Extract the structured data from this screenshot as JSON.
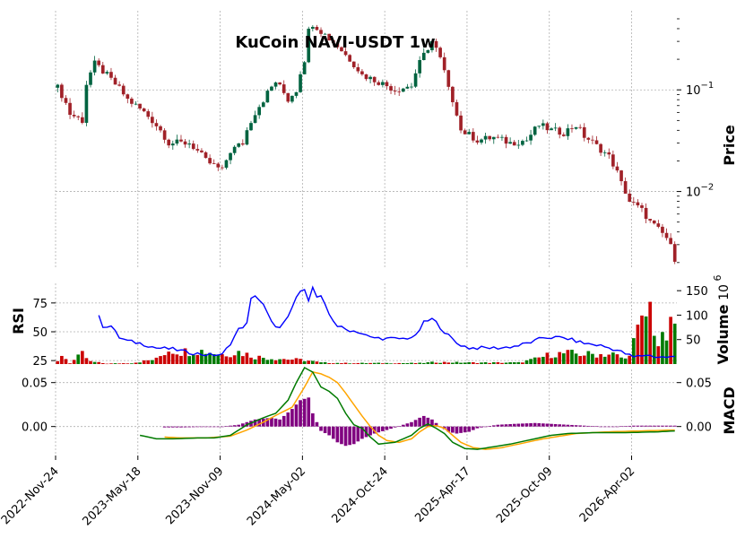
{
  "chart_data": {
    "type": "financial",
    "title": "KuCoin NAVI-USDT 1w",
    "x_tick_labels": [
      "2022-Nov-24",
      "2023-May-18",
      "2023-Nov-09",
      "2024-May-02",
      "2024-Oct-24",
      "2025-Apr-17",
      "2025-Oct-09",
      "2026-Apr-02"
    ],
    "panels": {
      "price": {
        "ylabel": "Price",
        "scale": "log",
        "ylim": [
          0.0018,
          0.6
        ],
        "tick_labels": [
          {
            "value": 0.1,
            "base": "10",
            "exp": "−1"
          },
          {
            "value": 0.01,
            "base": "10",
            "exp": "−2"
          }
        ],
        "up_color": "#006340",
        "down_color": "#a02128"
      },
      "rsi": {
        "ylabel": "RSI",
        "ylim": [
          22,
          92
        ],
        "tick_labels": [
          "25",
          "50",
          "75"
        ],
        "tick_values": [
          25,
          50,
          75
        ],
        "line_color": "#0000ff"
      },
      "volume": {
        "ylabel": "Volume",
        "exponent_label": "10",
        "exponent_power": "6",
        "ylim": [
          0,
          165
        ],
        "tick_labels": [
          "50",
          "100",
          "150"
        ],
        "tick_values": [
          50,
          100,
          150
        ],
        "up_color": "#007a00",
        "down_color": "#cc0000"
      },
      "macd": {
        "ylabel": "MACD",
        "ylim": [
          -0.033,
          0.065
        ],
        "left_tick_labels": [
          "0.00",
          "0.05"
        ],
        "right_tick_labels": [
          "0.00",
          "0.05"
        ],
        "tick_values": [
          0,
          0.05
        ],
        "macd_color": "#007a00",
        "signal_color": "#ffa500",
        "hist_color": "#800080"
      }
    },
    "anchors": [
      {
        "i": 0,
        "p": 0.105
      },
      {
        "i": 3,
        "p": 0.058
      },
      {
        "i": 6,
        "p": 0.05
      },
      {
        "i": 7,
        "p": 0.115
      },
      {
        "i": 9,
        "p": 0.18
      },
      {
        "i": 13,
        "p": 0.125
      },
      {
        "i": 17,
        "p": 0.08
      },
      {
        "i": 22,
        "p": 0.055
      },
      {
        "i": 27,
        "p": 0.03
      },
      {
        "i": 32,
        "p": 0.03
      },
      {
        "i": 36,
        "p": 0.02
      },
      {
        "i": 40,
        "p": 0.016
      },
      {
        "i": 42,
        "p": 0.025
      },
      {
        "i": 45,
        "p": 0.03
      },
      {
        "i": 50,
        "p": 0.08
      },
      {
        "i": 53,
        "p": 0.12
      },
      {
        "i": 56,
        "p": 0.08
      },
      {
        "i": 58,
        "p": 0.1
      },
      {
        "i": 60,
        "p": 0.2
      },
      {
        "i": 61,
        "p": 0.38
      },
      {
        "i": 62,
        "p": 0.45
      },
      {
        "i": 64,
        "p": 0.38
      },
      {
        "i": 66,
        "p": 0.32
      },
      {
        "i": 70,
        "p": 0.22
      },
      {
        "i": 74,
        "p": 0.14
      },
      {
        "i": 78,
        "p": 0.12
      },
      {
        "i": 82,
        "p": 0.1
      },
      {
        "i": 86,
        "p": 0.11
      },
      {
        "i": 89,
        "p": 0.22
      },
      {
        "i": 91,
        "p": 0.3
      },
      {
        "i": 93,
        "p": 0.2
      },
      {
        "i": 95,
        "p": 0.1
      },
      {
        "i": 98,
        "p": 0.04
      },
      {
        "i": 102,
        "p": 0.032
      },
      {
        "i": 106,
        "p": 0.034
      },
      {
        "i": 110,
        "p": 0.03
      },
      {
        "i": 114,
        "p": 0.032
      },
      {
        "i": 117,
        "p": 0.045
      },
      {
        "i": 120,
        "p": 0.04
      },
      {
        "i": 123,
        "p": 0.038
      },
      {
        "i": 126,
        "p": 0.045
      },
      {
        "i": 128,
        "p": 0.035
      },
      {
        "i": 131,
        "p": 0.028
      },
      {
        "i": 134,
        "p": 0.022
      },
      {
        "i": 137,
        "p": 0.012
      },
      {
        "i": 139,
        "p": 0.008
      },
      {
        "i": 142,
        "p": 0.0065
      },
      {
        "i": 144,
        "p": 0.005
      },
      {
        "i": 146,
        "p": 0.0042
      },
      {
        "i": 148,
        "p": 0.0035
      },
      {
        "i": 150,
        "p": 0.0022
      }
    ],
    "volume_anchors": [
      {
        "i": 0,
        "v": 5
      },
      {
        "i": 1,
        "v": 20
      },
      {
        "i": 3,
        "v": 2
      },
      {
        "i": 6,
        "v": 20
      },
      {
        "i": 8,
        "v": 5
      },
      {
        "i": 12,
        "v": 1
      },
      {
        "i": 18,
        "v": 2
      },
      {
        "i": 24,
        "v": 10
      },
      {
        "i": 27,
        "v": 30
      },
      {
        "i": 30,
        "v": 25
      },
      {
        "i": 34,
        "v": 28
      },
      {
        "i": 37,
        "v": 25
      },
      {
        "i": 40,
        "v": 20
      },
      {
        "i": 44,
        "v": 25
      },
      {
        "i": 48,
        "v": 15
      },
      {
        "i": 52,
        "v": 12
      },
      {
        "i": 56,
        "v": 10
      },
      {
        "i": 60,
        "v": 8
      },
      {
        "i": 64,
        "v": 3
      },
      {
        "i": 70,
        "v": 2
      },
      {
        "i": 80,
        "v": 2
      },
      {
        "i": 88,
        "v": 2
      },
      {
        "i": 92,
        "v": 4
      },
      {
        "i": 100,
        "v": 3
      },
      {
        "i": 106,
        "v": 3
      },
      {
        "i": 112,
        "v": 3
      },
      {
        "i": 116,
        "v": 10
      },
      {
        "i": 120,
        "v": 20
      },
      {
        "i": 124,
        "v": 22
      },
      {
        "i": 128,
        "v": 20
      },
      {
        "i": 132,
        "v": 20
      },
      {
        "i": 135,
        "v": 20
      },
      {
        "i": 138,
        "v": 10
      },
      {
        "i": 140,
        "v": 45
      },
      {
        "i": 142,
        "v": 80
      },
      {
        "i": 144,
        "v": 115
      },
      {
        "i": 146,
        "v": 40
      },
      {
        "i": 148,
        "v": 55
      },
      {
        "i": 150,
        "v": 85
      }
    ],
    "rsi_anchors": [
      {
        "i": 10,
        "v": 63
      },
      {
        "i": 11,
        "v": 55
      },
      {
        "i": 13,
        "v": 55
      },
      {
        "i": 15,
        "v": 45
      },
      {
        "i": 17,
        "v": 42
      },
      {
        "i": 20,
        "v": 40
      },
      {
        "i": 24,
        "v": 36
      },
      {
        "i": 28,
        "v": 35
      },
      {
        "i": 32,
        "v": 32
      },
      {
        "i": 36,
        "v": 30
      },
      {
        "i": 40,
        "v": 30
      },
      {
        "i": 42,
        "v": 40
      },
      {
        "i": 44,
        "v": 52
      },
      {
        "i": 46,
        "v": 57
      },
      {
        "i": 47,
        "v": 78
      },
      {
        "i": 48,
        "v": 82
      },
      {
        "i": 50,
        "v": 73
      },
      {
        "i": 52,
        "v": 58
      },
      {
        "i": 54,
        "v": 53
      },
      {
        "i": 56,
        "v": 62
      },
      {
        "i": 58,
        "v": 80
      },
      {
        "i": 60,
        "v": 88
      },
      {
        "i": 61,
        "v": 78
      },
      {
        "i": 62,
        "v": 88
      },
      {
        "i": 63,
        "v": 80
      },
      {
        "i": 64,
        "v": 80
      },
      {
        "i": 66,
        "v": 65
      },
      {
        "i": 68,
        "v": 55
      },
      {
        "i": 70,
        "v": 52
      },
      {
        "i": 73,
        "v": 50
      },
      {
        "i": 76,
        "v": 45
      },
      {
        "i": 80,
        "v": 44
      },
      {
        "i": 84,
        "v": 44
      },
      {
        "i": 87,
        "v": 46
      },
      {
        "i": 89,
        "v": 58
      },
      {
        "i": 91,
        "v": 61
      },
      {
        "i": 92,
        "v": 58
      },
      {
        "i": 94,
        "v": 50
      },
      {
        "i": 97,
        "v": 40
      },
      {
        "i": 100,
        "v": 36
      },
      {
        "i": 104,
        "v": 36
      },
      {
        "i": 108,
        "v": 36
      },
      {
        "i": 112,
        "v": 38
      },
      {
        "i": 116,
        "v": 42
      },
      {
        "i": 118,
        "v": 45
      },
      {
        "i": 122,
        "v": 45
      },
      {
        "i": 124,
        "v": 44
      },
      {
        "i": 128,
        "v": 40
      },
      {
        "i": 132,
        "v": 38
      },
      {
        "i": 136,
        "v": 34
      },
      {
        "i": 140,
        "v": 28
      },
      {
        "i": 143,
        "v": 30
      },
      {
        "i": 146,
        "v": 28
      },
      {
        "i": 150,
        "v": 28
      }
    ],
    "macd_line_anchors": [
      {
        "i": 20,
        "v": -0.01
      },
      {
        "i": 24,
        "v": -0.014
      },
      {
        "i": 28,
        "v": -0.014
      },
      {
        "i": 34,
        "v": -0.013
      },
      {
        "i": 38,
        "v": -0.013
      },
      {
        "i": 42,
        "v": -0.01
      },
      {
        "i": 46,
        "v": 0.002
      },
      {
        "i": 50,
        "v": 0.01
      },
      {
        "i": 53,
        "v": 0.015
      },
      {
        "i": 56,
        "v": 0.03
      },
      {
        "i": 58,
        "v": 0.05
      },
      {
        "i": 60,
        "v": 0.067
      },
      {
        "i": 62,
        "v": 0.062
      },
      {
        "i": 64,
        "v": 0.045
      },
      {
        "i": 66,
        "v": 0.04
      },
      {
        "i": 68,
        "v": 0.032
      },
      {
        "i": 70,
        "v": 0.015
      },
      {
        "i": 72,
        "v": 0.002
      },
      {
        "i": 74,
        "v": -0.002
      },
      {
        "i": 76,
        "v": -0.012
      },
      {
        "i": 78,
        "v": -0.02
      },
      {
        "i": 82,
        "v": -0.018
      },
      {
        "i": 84,
        "v": -0.014
      },
      {
        "i": 86,
        "v": -0.01
      },
      {
        "i": 88,
        "v": -0.002
      },
      {
        "i": 90,
        "v": 0.003
      },
      {
        "i": 92,
        "v": -0.002
      },
      {
        "i": 94,
        "v": -0.008
      },
      {
        "i": 96,
        "v": -0.018
      },
      {
        "i": 99,
        "v": -0.025
      },
      {
        "i": 102,
        "v": -0.026
      },
      {
        "i": 106,
        "v": -0.023
      },
      {
        "i": 110,
        "v": -0.02
      },
      {
        "i": 115,
        "v": -0.015
      },
      {
        "i": 120,
        "v": -0.01
      },
      {
        "i": 124,
        "v": -0.008
      },
      {
        "i": 130,
        "v": -0.007
      },
      {
        "i": 138,
        "v": -0.007
      },
      {
        "i": 146,
        "v": -0.006
      },
      {
        "i": 150,
        "v": -0.005
      }
    ],
    "signal_anchors": [
      {
        "i": 26,
        "v": -0.012
      },
      {
        "i": 30,
        "v": -0.013
      },
      {
        "i": 36,
        "v": -0.013
      },
      {
        "i": 42,
        "v": -0.011
      },
      {
        "i": 46,
        "v": -0.004
      },
      {
        "i": 50,
        "v": 0.005
      },
      {
        "i": 54,
        "v": 0.015
      },
      {
        "i": 57,
        "v": 0.022
      },
      {
        "i": 60,
        "v": 0.045
      },
      {
        "i": 62,
        "v": 0.062
      },
      {
        "i": 64,
        "v": 0.06
      },
      {
        "i": 66,
        "v": 0.056
      },
      {
        "i": 68,
        "v": 0.05
      },
      {
        "i": 70,
        "v": 0.038
      },
      {
        "i": 72,
        "v": 0.025
      },
      {
        "i": 74,
        "v": 0.012
      },
      {
        "i": 76,
        "v": 0.0
      },
      {
        "i": 78,
        "v": -0.01
      },
      {
        "i": 80,
        "v": -0.016
      },
      {
        "i": 83,
        "v": -0.018
      },
      {
        "i": 86,
        "v": -0.014
      },
      {
        "i": 88,
        "v": -0.006
      },
      {
        "i": 90,
        "v": 0.0
      },
      {
        "i": 92,
        "v": 0.001
      },
      {
        "i": 94,
        "v": -0.002
      },
      {
        "i": 96,
        "v": -0.01
      },
      {
        "i": 98,
        "v": -0.018
      },
      {
        "i": 101,
        "v": -0.024
      },
      {
        "i": 104,
        "v": -0.026
      },
      {
        "i": 108,
        "v": -0.024
      },
      {
        "i": 113,
        "v": -0.019
      },
      {
        "i": 118,
        "v": -0.014
      },
      {
        "i": 122,
        "v": -0.011
      },
      {
        "i": 126,
        "v": -0.008
      },
      {
        "i": 134,
        "v": -0.006
      },
      {
        "i": 142,
        "v": -0.005
      },
      {
        "i": 150,
        "v": -0.004
      }
    ],
    "hist_anchors": [
      {
        "i": 26,
        "v": -0.001
      },
      {
        "i": 30,
        "v": -0.001
      },
      {
        "i": 40,
        "v": 0.0
      },
      {
        "i": 44,
        "v": 0.002
      },
      {
        "i": 48,
        "v": 0.008
      },
      {
        "i": 52,
        "v": 0.01
      },
      {
        "i": 54,
        "v": 0.008
      },
      {
        "i": 57,
        "v": 0.02
      },
      {
        "i": 59,
        "v": 0.03
      },
      {
        "i": 61,
        "v": 0.033
      },
      {
        "i": 62,
        "v": 0.015
      },
      {
        "i": 64,
        "v": -0.005
      },
      {
        "i": 66,
        "v": -0.01
      },
      {
        "i": 68,
        "v": -0.018
      },
      {
        "i": 70,
        "v": -0.022
      },
      {
        "i": 72,
        "v": -0.02
      },
      {
        "i": 74,
        "v": -0.014
      },
      {
        "i": 77,
        "v": -0.008
      },
      {
        "i": 80,
        "v": -0.004
      },
      {
        "i": 82,
        "v": -0.001
      },
      {
        "i": 84,
        "v": 0.002
      },
      {
        "i": 86,
        "v": 0.005
      },
      {
        "i": 88,
        "v": 0.01
      },
      {
        "i": 89,
        "v": 0.012
      },
      {
        "i": 91,
        "v": 0.008
      },
      {
        "i": 93,
        "v": 0.0
      },
      {
        "i": 95,
        "v": -0.006
      },
      {
        "i": 97,
        "v": -0.008
      },
      {
        "i": 100,
        "v": -0.006
      },
      {
        "i": 102,
        "v": -0.002
      },
      {
        "i": 104,
        "v": 0.0
      },
      {
        "i": 107,
        "v": 0.002
      },
      {
        "i": 111,
        "v": 0.003
      },
      {
        "i": 116,
        "v": 0.004
      },
      {
        "i": 120,
        "v": 0.003
      },
      {
        "i": 124,
        "v": 0.002
      },
      {
        "i": 128,
        "v": 0.001
      },
      {
        "i": 132,
        "v": 0.0
      },
      {
        "i": 136,
        "v": 0.0
      },
      {
        "i": 140,
        "v": 0.001
      },
      {
        "i": 146,
        "v": 0.001
      },
      {
        "i": 150,
        "v": 0.001
      }
    ],
    "bar_count": 151
  }
}
